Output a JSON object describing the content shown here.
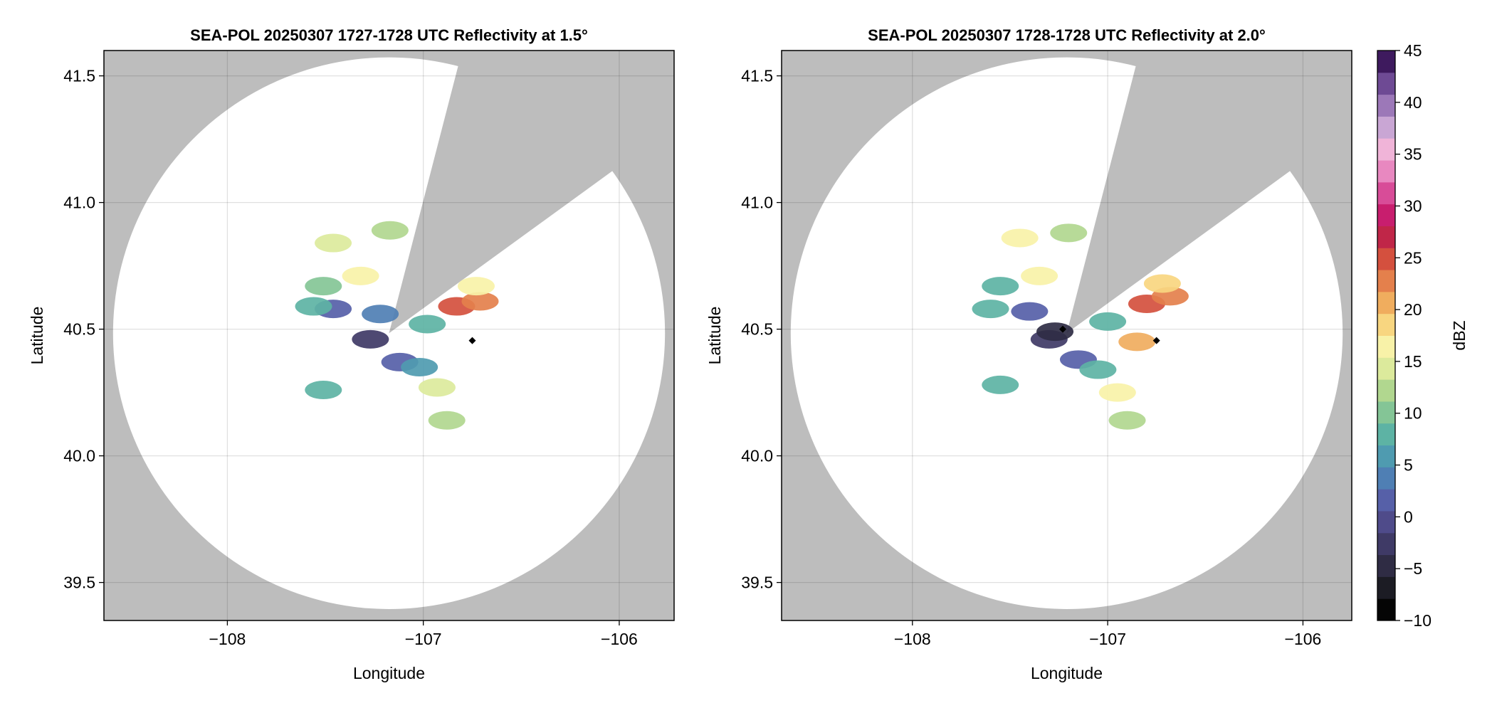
{
  "chart_data": [
    {
      "type": "ppi",
      "title": "SEA-POL 20250307 1727-1728 UTC Reflectivity at 1.5°",
      "xlabel": "Longitude",
      "ylabel": "Latitude",
      "xlim": [
        -108.63,
        -105.72
      ],
      "ylim": [
        39.35,
        41.6
      ],
      "xticks": [
        {
          "value": -108,
          "label": "−108"
        },
        {
          "value": -107,
          "label": "−107"
        },
        {
          "value": -106,
          "label": "−106"
        }
      ],
      "yticks": [
        {
          "value": 39.5,
          "label": "39.5"
        },
        {
          "value": 40,
          "label": "40.0"
        },
        {
          "value": 40.5,
          "label": "40.5"
        },
        {
          "value": 41,
          "label": "41.0"
        },
        {
          "value": 41.5,
          "label": "41.5"
        }
      ],
      "grid": true,
      "x": [
        -107.46,
        -107.17,
        -107.32,
        -107.51,
        -107.46,
        -107.56,
        -107.22,
        -106.83,
        -106.71,
        -106.73,
        -106.98,
        -107.12,
        -106.93,
        -107.02,
        -106.88,
        -107.51,
        -107.27
      ],
      "y": [
        40.84,
        40.89,
        40.71,
        40.67,
        40.58,
        40.59,
        40.56,
        40.59,
        40.61,
        40.67,
        40.52,
        40.37,
        40.27,
        40.35,
        40.14,
        40.26,
        40.46
      ],
      "values": [
        15,
        12,
        17,
        10,
        2,
        8,
        3,
        24,
        22,
        16,
        8,
        1,
        15,
        6,
        12,
        9,
        -3
      ],
      "markers": {
        "x": [
          -106.75
        ],
        "y": [
          40.455
        ]
      }
    },
    {
      "type": "ppi",
      "title": "SEA-POL 20250307 1728-1728 UTC Reflectivity at 2.0°",
      "xlabel": "Longitude",
      "ylabel": "Latitude",
      "xlim": [
        -108.67,
        -105.75
      ],
      "ylim": [
        39.35,
        41.6
      ],
      "xticks": [
        {
          "value": -108,
          "label": "−108"
        },
        {
          "value": -107,
          "label": "−107"
        },
        {
          "value": -106,
          "label": "−106"
        }
      ],
      "yticks": [
        {
          "value": 39.5,
          "label": "39.5"
        },
        {
          "value": 40,
          "label": "40.0"
        },
        {
          "value": 40.5,
          "label": "40.5"
        },
        {
          "value": 41,
          "label": "41.0"
        },
        {
          "value": 41.5,
          "label": "41.5"
        }
      ],
      "grid": true,
      "x": [
        -107.45,
        -107.2,
        -107.35,
        -107.55,
        -107.4,
        -107.6,
        -107.3,
        -106.8,
        -106.68,
        -106.72,
        -107.0,
        -107.15,
        -106.95,
        -107.05,
        -106.9,
        -107.55,
        -107.27,
        -106.85
      ],
      "y": [
        40.86,
        40.88,
        40.71,
        40.67,
        40.57,
        40.58,
        40.46,
        40.6,
        40.63,
        40.68,
        40.53,
        40.38,
        40.25,
        40.34,
        40.14,
        40.28,
        40.49,
        40.45
      ],
      "values": [
        16,
        13,
        17,
        9,
        2,
        7,
        -2,
        25,
        23,
        18,
        9,
        2,
        16,
        8,
        13,
        8,
        -4,
        20
      ],
      "markers": {
        "x": [
          -106.75,
          -107.23
        ],
        "y": [
          40.455,
          40.5
        ]
      }
    },
    {
      "type": "colorbar",
      "label": "dBZ",
      "lim": [
        -10,
        45
      ],
      "ticks": [
        {
          "value": -10,
          "label": "−10"
        },
        {
          "value": -5,
          "label": "−5"
        },
        0,
        5,
        10,
        15,
        20,
        25,
        30,
        35,
        40,
        45
      ],
      "colors": [
        "#050505",
        "#1c1c24",
        "#2f2c44",
        "#3f3a66",
        "#4f4b8a",
        "#5660a8",
        "#4f7fb4",
        "#4f9bb0",
        "#5db3a4",
        "#84c596",
        "#b1d78f",
        "#dcea9c",
        "#f8f2a8",
        "#f8d680",
        "#f0ad5e",
        "#e4804c",
        "#d4503e",
        "#c02648",
        "#c81e6e",
        "#d84c98",
        "#e888c0",
        "#f0b4d8",
        "#c9a6d4",
        "#9c78b8",
        "#6e4a94",
        "#3e1a5e"
      ]
    }
  ]
}
